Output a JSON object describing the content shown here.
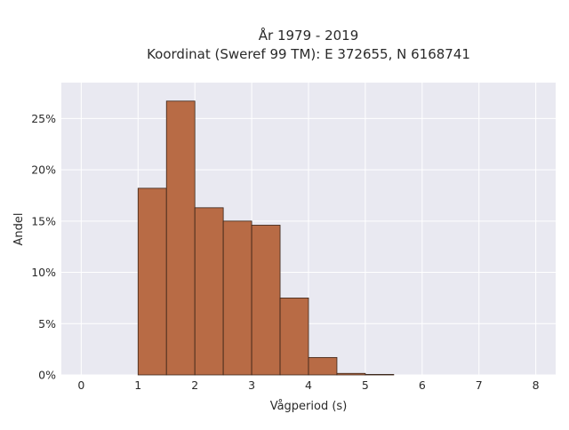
{
  "chart_data": {
    "type": "bar",
    "title": [
      "År 1979 - 2019",
      "Koordinat (Sweref 99 TM): E 372655, N 6168741"
    ],
    "xlabel": "Vågperiod (s)",
    "ylabel": "Andel",
    "xlim": [
      -0.35,
      8.35
    ],
    "ylim": [
      0,
      28.5
    ],
    "xticks": [
      0,
      1,
      2,
      3,
      4,
      5,
      6,
      7,
      8
    ],
    "xtick_labels": [
      "0",
      "1",
      "2",
      "3",
      "4",
      "5",
      "6",
      "7",
      "8"
    ],
    "yticks": [
      0,
      5,
      10,
      15,
      20,
      25
    ],
    "ytick_labels": [
      "0%",
      "5%",
      "10%",
      "15%",
      "20%",
      "25%"
    ],
    "bin_width": 0.5,
    "bins": [
      {
        "start": 1.0,
        "end": 1.5,
        "value": 18.2
      },
      {
        "start": 1.5,
        "end": 2.0,
        "value": 26.7
      },
      {
        "start": 2.0,
        "end": 2.5,
        "value": 16.3
      },
      {
        "start": 2.5,
        "end": 3.0,
        "value": 15.0
      },
      {
        "start": 3.0,
        "end": 3.5,
        "value": 14.6
      },
      {
        "start": 3.5,
        "end": 4.0,
        "value": 7.5
      },
      {
        "start": 4.0,
        "end": 4.5,
        "value": 1.7
      },
      {
        "start": 4.5,
        "end": 5.0,
        "value": 0.15
      },
      {
        "start": 5.0,
        "end": 5.5,
        "value": 0.05
      }
    ],
    "grid": true,
    "colors": {
      "plot_background": "#e9e9f1",
      "grid": "#ffffff",
      "bar_fill": "#b86b45",
      "bar_stroke": "#3a2418"
    }
  }
}
